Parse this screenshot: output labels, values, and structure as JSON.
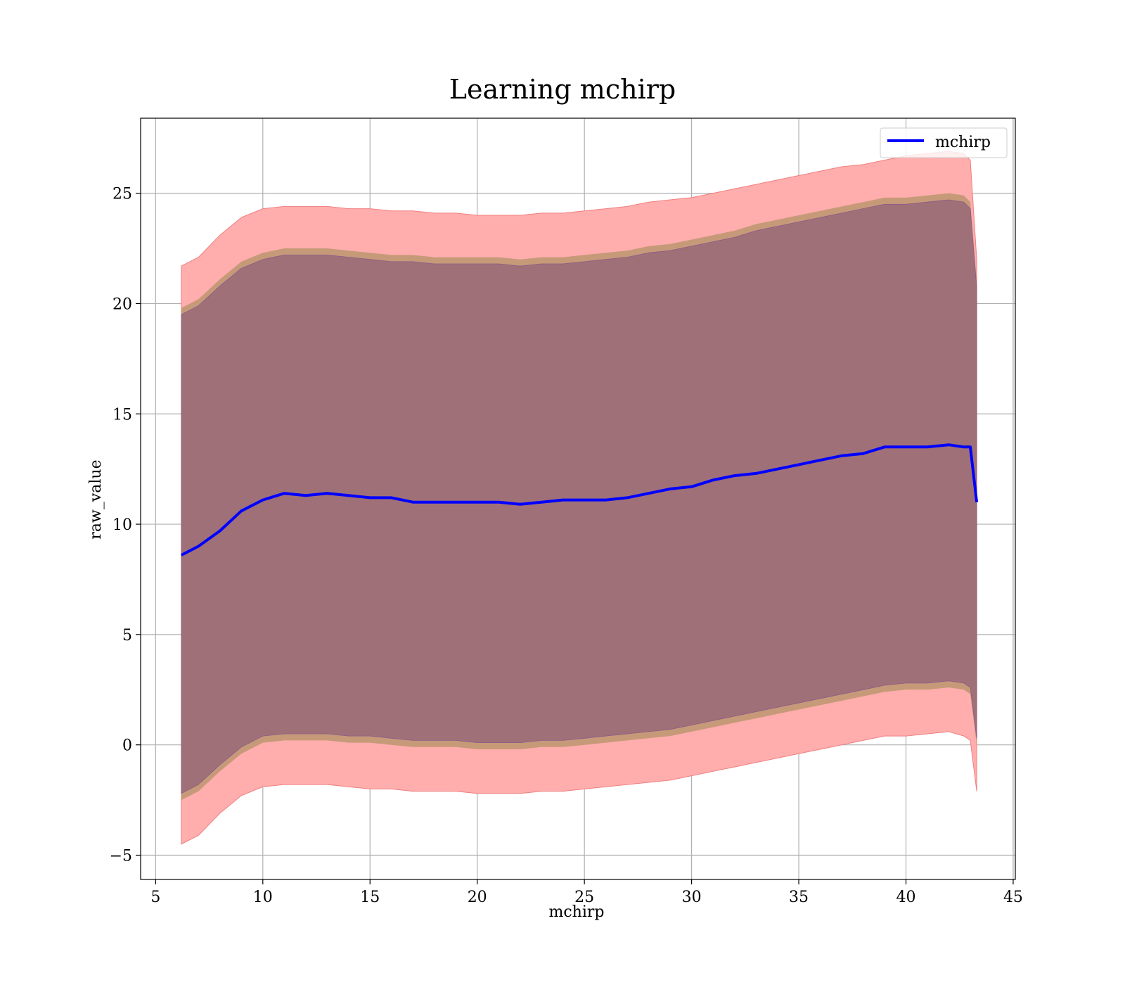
{
  "chart_data": {
    "type": "area",
    "title": "Learning mchirp",
    "xlabel": "mchirp",
    "ylabel": "raw_value",
    "xlim": [
      4.3,
      45.1
    ],
    "ylim": [
      -6.1,
      28.4
    ],
    "xticks": [
      5,
      10,
      15,
      20,
      25,
      30,
      35,
      40,
      45
    ],
    "yticks": [
      -5,
      0,
      5,
      10,
      15,
      20,
      25
    ],
    "grid": true,
    "legend_position": "top-right",
    "colors": {
      "mean_line": "#0000ff",
      "outer_band": "#ffadad",
      "outer_band_edge": "#f08080",
      "middle_band": "#c69a78",
      "inner_band": "#a07078",
      "inner_band_edge": "#8a5a8a"
    },
    "x": [
      6.2,
      7,
      8,
      9,
      10,
      11,
      12,
      13,
      14,
      15,
      16,
      17,
      18,
      19,
      20,
      21,
      22,
      23,
      24,
      25,
      26,
      27,
      28,
      29,
      30,
      31,
      32,
      33,
      34,
      35,
      36,
      37,
      38,
      39,
      40,
      41,
      42,
      42.7,
      43.0,
      43.3
    ],
    "series": [
      {
        "name": "mchirp",
        "role": "line",
        "values": [
          8.6,
          9.0,
          9.7,
          10.6,
          11.1,
          11.4,
          11.3,
          11.4,
          11.3,
          11.2,
          11.2,
          11.0,
          11.0,
          11.0,
          11.0,
          11.0,
          10.9,
          11.0,
          11.1,
          11.1,
          11.1,
          11.2,
          11.4,
          11.6,
          11.7,
          12.0,
          12.2,
          12.3,
          12.5,
          12.7,
          12.9,
          13.1,
          13.2,
          13.5,
          13.5,
          13.5,
          13.6,
          13.5,
          13.5,
          11.0
        ]
      },
      {
        "role": "outer_band",
        "upper": [
          21.7,
          22.1,
          23.1,
          23.9,
          24.3,
          24.4,
          24.4,
          24.4,
          24.3,
          24.3,
          24.2,
          24.2,
          24.1,
          24.1,
          24.0,
          24.0,
          24.0,
          24.1,
          24.1,
          24.2,
          24.3,
          24.4,
          24.6,
          24.7,
          24.8,
          25.0,
          25.2,
          25.4,
          25.6,
          25.8,
          26.0,
          26.2,
          26.3,
          26.5,
          26.7,
          26.8,
          26.9,
          26.8,
          26.5,
          22.0
        ],
        "lower": [
          -4.5,
          -4.1,
          -3.1,
          -2.3,
          -1.9,
          -1.8,
          -1.8,
          -1.8,
          -1.9,
          -2.0,
          -2.0,
          -2.1,
          -2.1,
          -2.1,
          -2.2,
          -2.2,
          -2.2,
          -2.1,
          -2.1,
          -2.0,
          -1.9,
          -1.8,
          -1.7,
          -1.6,
          -1.4,
          -1.2,
          -1.0,
          -0.8,
          -0.6,
          -0.4,
          -0.2,
          0.0,
          0.2,
          0.4,
          0.4,
          0.5,
          0.6,
          0.4,
          0.2,
          -2.1
        ]
      },
      {
        "role": "middle_band",
        "upper": [
          19.8,
          20.2,
          21.1,
          21.9,
          22.3,
          22.5,
          22.5,
          22.5,
          22.4,
          22.3,
          22.2,
          22.2,
          22.1,
          22.1,
          22.1,
          22.1,
          22.0,
          22.1,
          22.1,
          22.2,
          22.3,
          22.4,
          22.6,
          22.7,
          22.9,
          23.1,
          23.3,
          23.6,
          23.8,
          24.0,
          24.2,
          24.4,
          24.6,
          24.8,
          24.8,
          24.9,
          25.0,
          24.9,
          24.6,
          21.0
        ],
        "lower": [
          -2.5,
          -2.1,
          -1.2,
          -0.4,
          0.1,
          0.2,
          0.2,
          0.2,
          0.1,
          0.1,
          0.0,
          -0.1,
          -0.1,
          -0.1,
          -0.2,
          -0.2,
          -0.2,
          -0.1,
          -0.1,
          0.0,
          0.1,
          0.2,
          0.3,
          0.4,
          0.6,
          0.8,
          1.0,
          1.2,
          1.4,
          1.6,
          1.8,
          2.0,
          2.2,
          2.4,
          2.5,
          2.5,
          2.6,
          2.5,
          2.3,
          0.0
        ]
      },
      {
        "role": "inner_band",
        "upper": [
          19.5,
          19.9,
          20.8,
          21.6,
          22.0,
          22.2,
          22.2,
          22.2,
          22.1,
          22.0,
          21.9,
          21.9,
          21.8,
          21.8,
          21.8,
          21.8,
          21.7,
          21.8,
          21.8,
          21.9,
          22.0,
          22.1,
          22.3,
          22.4,
          22.6,
          22.8,
          23.0,
          23.3,
          23.5,
          23.7,
          23.9,
          24.1,
          24.3,
          24.5,
          24.5,
          24.6,
          24.7,
          24.6,
          24.3,
          20.7
        ],
        "lower": [
          -2.2,
          -1.8,
          -0.9,
          -0.1,
          0.4,
          0.5,
          0.5,
          0.5,
          0.4,
          0.4,
          0.3,
          0.2,
          0.2,
          0.2,
          0.1,
          0.1,
          0.1,
          0.2,
          0.2,
          0.3,
          0.4,
          0.5,
          0.6,
          0.7,
          0.9,
          1.1,
          1.3,
          1.5,
          1.7,
          1.9,
          2.1,
          2.3,
          2.5,
          2.7,
          2.8,
          2.8,
          2.9,
          2.8,
          2.6,
          0.3
        ]
      }
    ]
  }
}
